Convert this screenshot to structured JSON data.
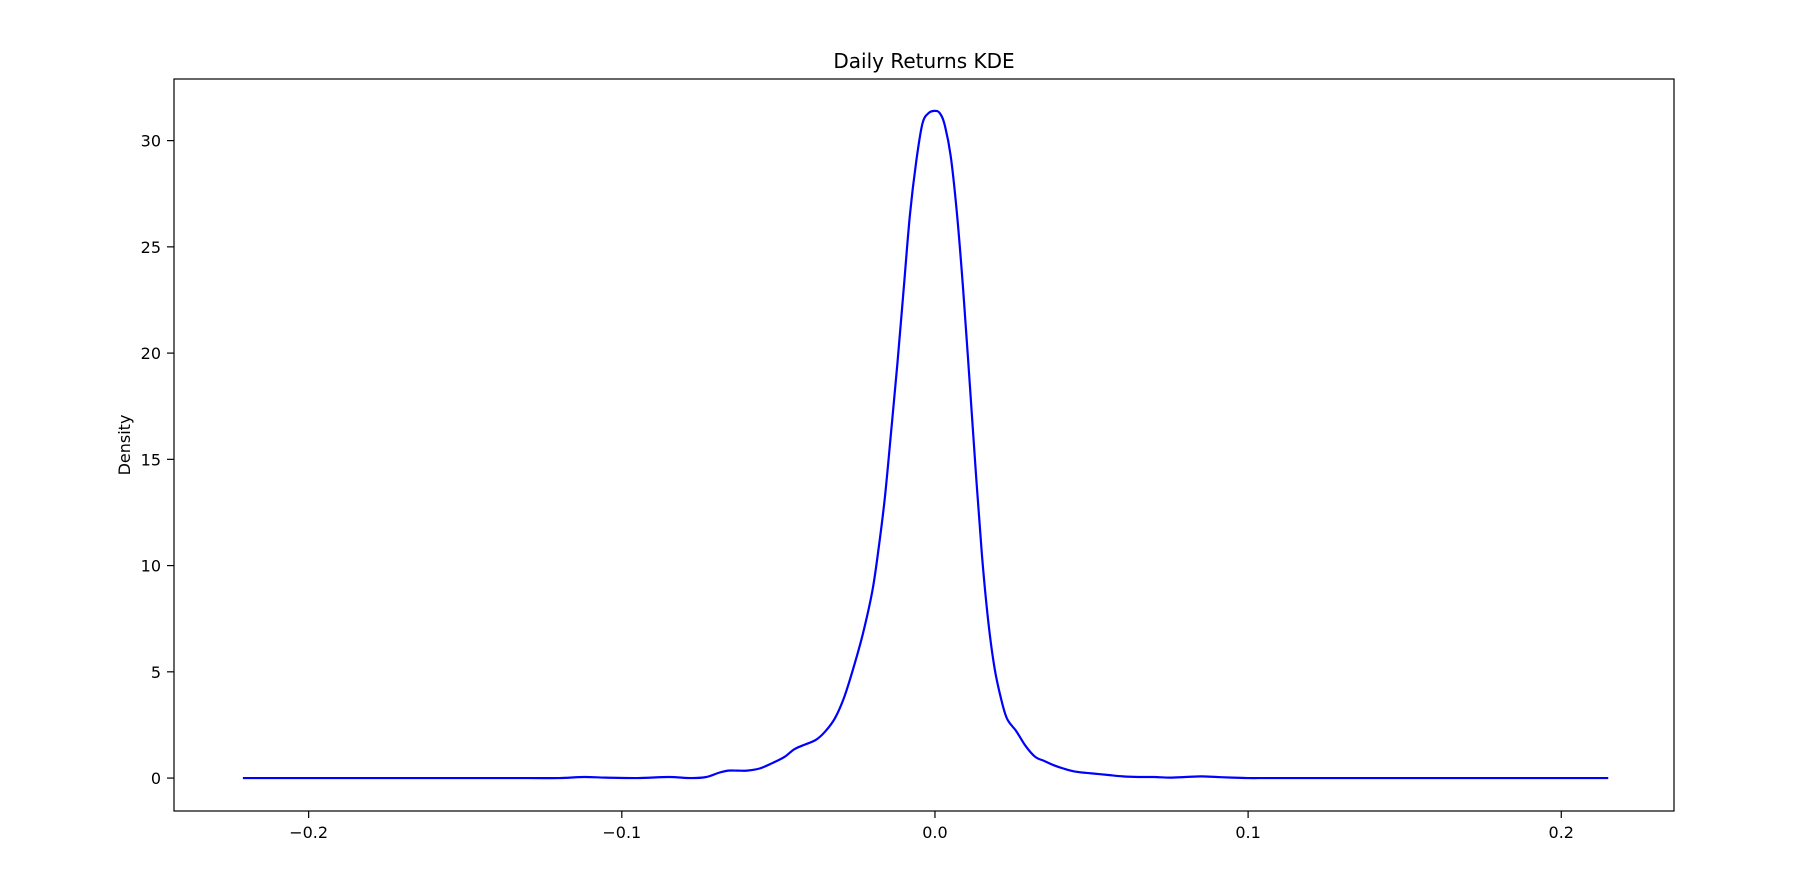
{
  "chart_data": {
    "type": "line",
    "title": "Daily Returns KDE",
    "xlabel": "",
    "ylabel": "Density",
    "xlim": [
      -0.243,
      0.236
    ],
    "ylim": [
      -1.55,
      32.9
    ],
    "grid": false,
    "legend": "none",
    "x_ticks": [
      -0.2,
      -0.1,
      0.0,
      0.1,
      0.2
    ],
    "x_tick_labels": [
      "−0.2",
      "−0.1",
      "0.0",
      "0.1",
      "0.2"
    ],
    "y_ticks": [
      0,
      5,
      10,
      15,
      20,
      25,
      30
    ],
    "y_tick_labels": [
      "0",
      "5",
      "10",
      "15",
      "20",
      "25",
      "30"
    ],
    "colors": {
      "line": "#0000ff",
      "axes": "#000000"
    },
    "series": [
      {
        "x": [
          -0.221,
          -0.2,
          -0.15,
          -0.13,
          -0.12,
          -0.112,
          -0.105,
          -0.095,
          -0.085,
          -0.078,
          -0.073,
          -0.069,
          -0.066,
          -0.063,
          -0.06,
          -0.056,
          -0.052,
          -0.048,
          -0.045,
          -0.042,
          -0.038,
          -0.035,
          -0.032,
          -0.029,
          -0.026,
          -0.023,
          -0.02,
          -0.018,
          -0.016,
          -0.014,
          -0.012,
          -0.01,
          -0.008,
          -0.006,
          -0.004,
          -0.002,
          0.0,
          0.0015,
          0.003,
          0.005,
          0.007,
          0.009,
          0.011,
          0.013,
          0.015,
          0.017,
          0.019,
          0.021,
          0.023,
          0.026,
          0.029,
          0.032,
          0.035,
          0.038,
          0.041,
          0.045,
          0.05,
          0.055,
          0.06,
          0.065,
          0.07,
          0.075,
          0.08,
          0.085,
          0.09,
          0.095,
          0.1,
          0.105,
          0.11,
          0.115,
          0.13,
          0.15,
          0.2,
          0.215
        ],
        "y": [
          0.0,
          0.0,
          0.0,
          0.0,
          0.0,
          0.05,
          0.02,
          0.0,
          0.05,
          0.0,
          0.05,
          0.25,
          0.35,
          0.35,
          0.35,
          0.45,
          0.7,
          1.0,
          1.35,
          1.55,
          1.8,
          2.2,
          2.8,
          3.8,
          5.2,
          6.8,
          8.8,
          10.8,
          13.2,
          16.3,
          19.5,
          23.0,
          26.5,
          29.0,
          30.8,
          31.3,
          31.4,
          31.3,
          30.8,
          29.3,
          26.6,
          23.0,
          18.8,
          14.5,
          10.5,
          7.4,
          5.2,
          3.8,
          2.8,
          2.2,
          1.5,
          1.0,
          0.8,
          0.6,
          0.45,
          0.3,
          0.22,
          0.15,
          0.08,
          0.05,
          0.05,
          0.02,
          0.05,
          0.08,
          0.05,
          0.02,
          0.0,
          0.0,
          0.0,
          0.0,
          0.0,
          0.0,
          0.0,
          0.0
        ]
      }
    ]
  }
}
